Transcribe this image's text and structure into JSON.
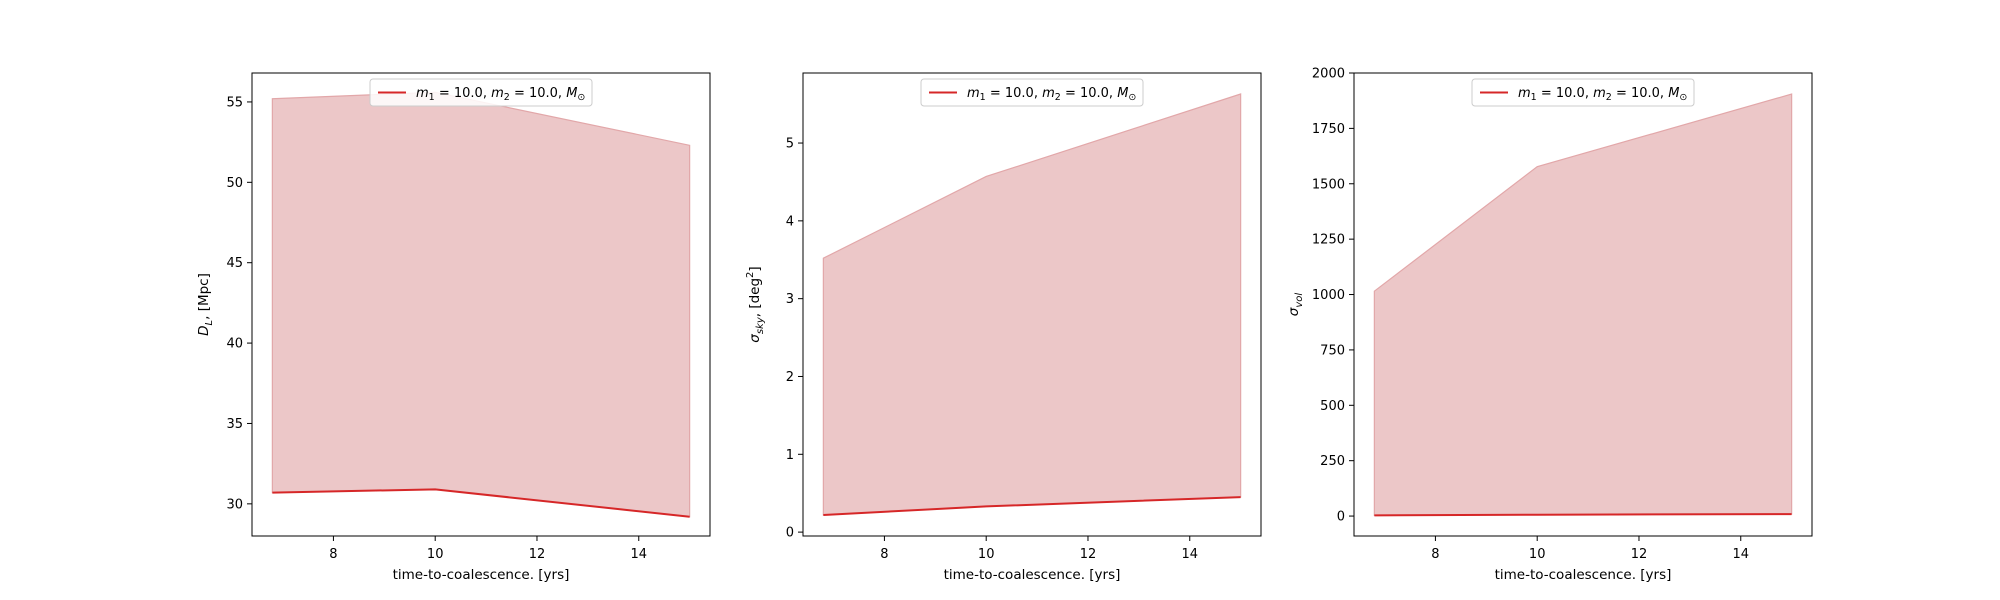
{
  "colors": {
    "line": "#d62728",
    "band_fill": "#ecc7c8",
    "band_edge": "#e2a7a9",
    "axis": "#000000",
    "legend_border": "#cccccc"
  },
  "chart_data": [
    {
      "type": "area",
      "x": [
        6.8,
        10.0,
        15.0
      ],
      "band_upper": [
        55.2,
        55.6,
        52.3
      ],
      "line_values": [
        30.7,
        30.9,
        29.2
      ],
      "band_lower": [
        30.7,
        30.9,
        29.2
      ],
      "xlabel": "time-to-coalescence. [yrs]",
      "ylabel": {
        "main": "D",
        "sub": "L",
        "rest": ", [Mpc]"
      },
      "xlim": [
        6.4,
        15.4
      ],
      "ylim": [
        28.0,
        56.8
      ],
      "xticks": [
        8,
        10,
        12,
        14
      ],
      "yticks": [
        30,
        35,
        40,
        45,
        50,
        55
      ],
      "legend_position": "upper center",
      "series": [
        {
          "name": "m1 = 10.0, m2 = 10.0, M⊙"
        }
      ]
    },
    {
      "type": "area",
      "x": [
        6.8,
        10.0,
        15.0
      ],
      "band_upper": [
        3.52,
        4.57,
        5.63
      ],
      "line_values": [
        0.22,
        0.33,
        0.45
      ],
      "band_lower": [
        0.22,
        0.33,
        0.45
      ],
      "xlabel": "time-to-coalescence. [yrs]",
      "ylabel": {
        "main": "σ",
        "sub": "sky",
        "rest": ", [deg",
        "sup": "2",
        "tail": "]"
      },
      "xlim": [
        6.4,
        15.4
      ],
      "ylim": [
        -0.05,
        5.9
      ],
      "xticks": [
        8,
        10,
        12,
        14
      ],
      "yticks": [
        0,
        1,
        2,
        3,
        4,
        5
      ],
      "legend_position": "upper center",
      "series": [
        {
          "name": "m1 = 10.0, m2 = 10.0, M⊙"
        }
      ]
    },
    {
      "type": "area",
      "x": [
        6.8,
        10.0,
        15.0
      ],
      "band_upper": [
        1015,
        1577,
        1905
      ],
      "line_values": [
        3,
        6,
        9
      ],
      "band_lower": [
        3,
        6,
        9
      ],
      "xlabel": "time-to-coalescence. [yrs]",
      "ylabel": {
        "main": "σ",
        "sub": "vol"
      },
      "xlim": [
        6.4,
        15.4
      ],
      "ylim": [
        -90,
        2000
      ],
      "xticks": [
        8,
        10,
        12,
        14
      ],
      "yticks": [
        0,
        250,
        500,
        750,
        1000,
        1250,
        1500,
        1750,
        2000
      ],
      "legend_position": "upper center",
      "series": [
        {
          "name": "m1 = 10.0, m2 = 10.0, M⊙"
        }
      ]
    }
  ]
}
